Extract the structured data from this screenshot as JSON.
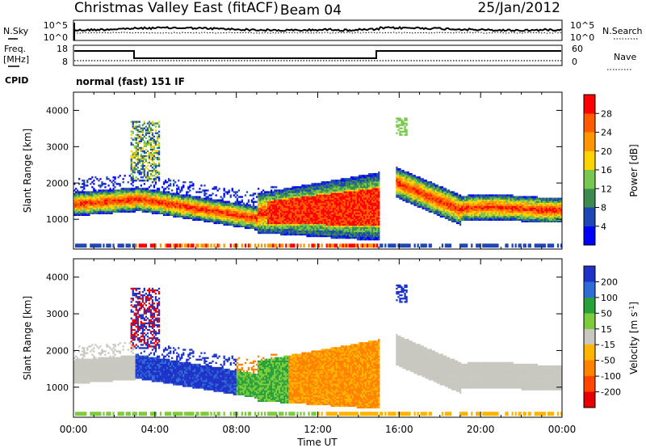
{
  "header": {
    "title": "Christmas Valley East (fitACF)",
    "beam": "Beam 04",
    "date": "25/Jan/2012"
  },
  "summary_panels": {
    "nsky_label": "N.Sky",
    "nsearch_label": "N.Search",
    "noise_ticks": [
      "10^5",
      "10^0"
    ],
    "freq_label": "Freq.",
    "freq_unit": "[MHz]",
    "freq_ticks": [
      "18",
      "8"
    ],
    "nave_label": "Nave",
    "nave_ticks": [
      "60",
      "0"
    ],
    "cpid_label": "CPID",
    "cpid_text": "normal (fast) 151 IF"
  },
  "chart_data": [
    {
      "type": "heatmap",
      "panel": "power",
      "ylabel": "Slant Range [km]",
      "yticks": [
        "4000",
        "3000",
        "2000",
        "1000"
      ],
      "ylim": [
        180,
        4500
      ],
      "xlim": [
        0,
        24
      ],
      "xlabel": "Time UT",
      "xticks": [
        "00:00",
        "04:00",
        "08:00",
        "12:00",
        "16:00",
        "20:00",
        "00:00"
      ],
      "colorbar": {
        "label": "Power [dB]",
        "ticks": [
          "28",
          "24",
          "20",
          "16",
          "12",
          "8",
          "4"
        ],
        "colors": [
          "#ff0000",
          "#ff5a00",
          "#ff9600",
          "#ffd200",
          "#78c850",
          "#3c8c50",
          "#1e46b4",
          "#0000ff"
        ]
      }
    },
    {
      "type": "heatmap",
      "panel": "velocity",
      "ylabel": "Slant Range [km]",
      "yticks": [
        "4000",
        "3000",
        "2000",
        "1000"
      ],
      "ylim": [
        180,
        4500
      ],
      "xlim": [
        0,
        24
      ],
      "xlabel": "Time UT",
      "xticks": [
        "00:00",
        "04:00",
        "08:00",
        "12:00",
        "16:00",
        "20:00",
        "00:00"
      ],
      "colorbar": {
        "label": "Velocity [m s-1]",
        "ticks": [
          "200",
          "100",
          "50",
          "15",
          "-15",
          "-50",
          "-100",
          "-200"
        ],
        "colors": [
          "#1e32c8",
          "#2e6cd8",
          "#28a03c",
          "#7ccc3c",
          "#c8c8c0",
          "#ffb400",
          "#ff8200",
          "#ff4600",
          "#e60000"
        ]
      }
    }
  ],
  "x_axis": {
    "label": "Time UT",
    "ticks": [
      "00:00",
      "04:00",
      "08:00",
      "12:00",
      "16:00",
      "20:00",
      "00:00"
    ]
  }
}
